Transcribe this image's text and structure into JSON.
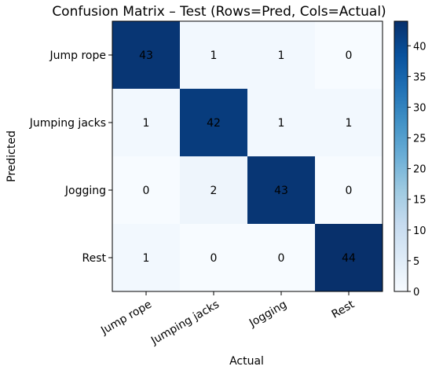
{
  "chart_data": {
    "type": "heatmap",
    "title": "Confusion Matrix – Test (Rows=Pred, Cols=Actual)",
    "xlabel": "Actual",
    "ylabel": "Predicted",
    "row_labels": [
      "Jump rope",
      "Jumping jacks",
      "Jogging",
      "Rest"
    ],
    "col_labels": [
      "Jump rope",
      "Jumping jacks",
      "Jogging",
      "Rest"
    ],
    "values": [
      [
        43,
        1,
        1,
        0
      ],
      [
        1,
        42,
        1,
        1
      ],
      [
        0,
        2,
        43,
        0
      ],
      [
        1,
        0,
        0,
        44
      ]
    ],
    "colorscale": "Blues",
    "colorbar": {
      "min": 0,
      "max": 44,
      "ticks": [
        0,
        5,
        10,
        15,
        20,
        25,
        30,
        35,
        40
      ]
    }
  }
}
